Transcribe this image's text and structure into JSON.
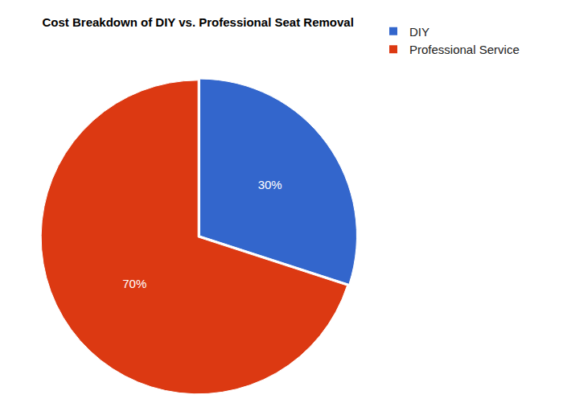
{
  "chart_data": {
    "type": "pie",
    "title": "Cost Breakdown of DIY vs. Professional Seat Removal",
    "categories": [
      "DIY",
      "Professional Service"
    ],
    "values": [
      30,
      70
    ],
    "value_labels": [
      "30%",
      "70%"
    ],
    "colors": [
      "#3366cc",
      "#dc3912"
    ],
    "data_labels": true,
    "legend": "top-right"
  }
}
